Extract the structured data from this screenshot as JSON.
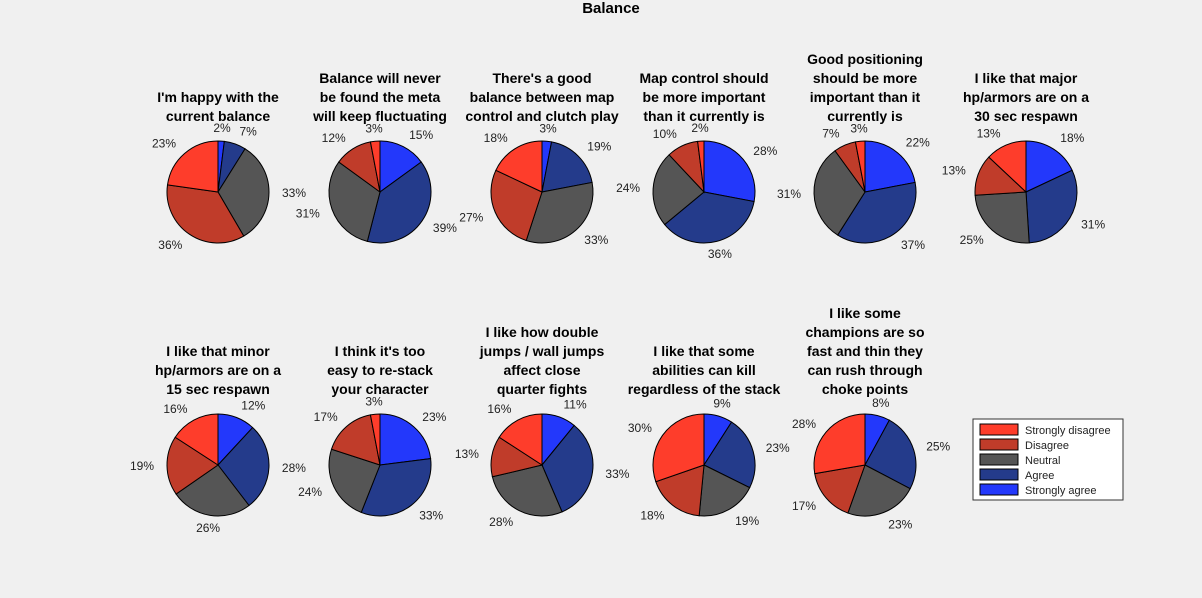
{
  "title": "Balance",
  "colors": {
    "Strongly disagree": "#fe3d2b",
    "Disagree": "#c03c2a",
    "Neutral": "#555555",
    "Agree": "#243b8b",
    "Strongly agree": "#2338fb"
  },
  "legend": {
    "placement": "right",
    "entries": [
      "Strongly disagree",
      "Disagree",
      "Neutral",
      "Agree",
      "Strongly agree"
    ]
  },
  "chart_data": [
    {
      "type": "pie",
      "title": [
        "I'm happy with the",
        "current balance"
      ],
      "categories": [
        "Strongly disagree",
        "Disagree",
        "Neutral",
        "Agree",
        "Strongly agree"
      ],
      "values": [
        23,
        36,
        33,
        7,
        2
      ],
      "labels": [
        "23%",
        "36%",
        "33%",
        "7%",
        "2%"
      ]
    },
    {
      "type": "pie",
      "title": [
        "Balance will never",
        "be found the meta",
        "will keep fluctuating"
      ],
      "categories": [
        "Strongly disagree",
        "Disagree",
        "Neutral",
        "Agree",
        "Strongly agree"
      ],
      "values": [
        3,
        12,
        31,
        39,
        15
      ],
      "labels": [
        "3%",
        "12%",
        "31%",
        "39%",
        "15%"
      ]
    },
    {
      "type": "pie",
      "title": [
        "There's a good",
        "balance between map",
        "control and clutch play"
      ],
      "categories": [
        "Strongly disagree",
        "Disagree",
        "Neutral",
        "Agree",
        "Strongly agree"
      ],
      "values": [
        18,
        27,
        33,
        19,
        3
      ],
      "labels": [
        "18%",
        "27%",
        "33%",
        "19%",
        "3%"
      ]
    },
    {
      "type": "pie",
      "title": [
        "Map control should",
        "be more important",
        "than it currently is"
      ],
      "categories": [
        "Strongly disagree",
        "Disagree",
        "Neutral",
        "Agree",
        "Strongly agree"
      ],
      "values": [
        2,
        10,
        24,
        36,
        28
      ],
      "labels": [
        "2%",
        "10%",
        "24%",
        "36%",
        "28%"
      ]
    },
    {
      "type": "pie",
      "title": [
        "Good positioning",
        "should be more",
        "important than it",
        "currently is"
      ],
      "categories": [
        "Strongly disagree",
        "Disagree",
        "Neutral",
        "Agree",
        "Strongly agree"
      ],
      "values": [
        3,
        7,
        31,
        37,
        22
      ],
      "labels": [
        "3%",
        "7%",
        "31%",
        "37%",
        "22%"
      ]
    },
    {
      "type": "pie",
      "title": [
        "I like that major",
        "hp/armors are on a",
        "30 sec respawn"
      ],
      "categories": [
        "Strongly disagree",
        "Disagree",
        "Neutral",
        "Agree",
        "Strongly agree"
      ],
      "values": [
        13,
        13,
        25,
        31,
        18
      ],
      "labels": [
        "13%",
        "13%",
        "25%",
        "31%",
        "18%"
      ]
    },
    {
      "type": "pie",
      "title": [
        "I like that minor",
        "hp/armors are on a",
        "15 sec respawn"
      ],
      "categories": [
        "Strongly disagree",
        "Disagree",
        "Neutral",
        "Agree",
        "Strongly agree"
      ],
      "values": [
        16,
        19,
        26,
        28,
        12
      ],
      "labels": [
        "16%",
        "19%",
        "26%",
        "28%",
        "12%"
      ]
    },
    {
      "type": "pie",
      "title": [
        "I think it's too",
        "easy to re-stack",
        "your character"
      ],
      "categories": [
        "Strongly disagree",
        "Disagree",
        "Neutral",
        "Agree",
        "Strongly agree"
      ],
      "values": [
        3,
        17,
        24,
        33,
        23
      ],
      "labels": [
        "3%",
        "17%",
        "24%",
        "33%",
        "23%"
      ]
    },
    {
      "type": "pie",
      "title": [
        "I like how double",
        "jumps / wall jumps",
        "affect close",
        "quarter fights"
      ],
      "categories": [
        "Strongly disagree",
        "Disagree",
        "Neutral",
        "Agree",
        "Strongly agree"
      ],
      "values": [
        16,
        13,
        28,
        33,
        11
      ],
      "labels": [
        "16%",
        "13%",
        "28%",
        "33%",
        "11%"
      ]
    },
    {
      "type": "pie",
      "title": [
        "I like that some",
        "abilities can kill",
        "regardless of the stack"
      ],
      "categories": [
        "Strongly disagree",
        "Disagree",
        "Neutral",
        "Agree",
        "Strongly agree"
      ],
      "values": [
        30,
        18,
        19,
        23,
        9
      ],
      "labels": [
        "30%",
        "18%",
        "19%",
        "23%",
        "9%"
      ]
    },
    {
      "type": "pie",
      "title": [
        "I like some",
        "champions are so",
        "fast and thin they",
        "can rush through",
        "choke points"
      ],
      "categories": [
        "Strongly disagree",
        "Disagree",
        "Neutral",
        "Agree",
        "Strongly agree"
      ],
      "values": [
        28,
        17,
        23,
        25,
        8
      ],
      "labels": [
        "28%",
        "17%",
        "23%",
        "25%",
        "8%"
      ]
    }
  ]
}
